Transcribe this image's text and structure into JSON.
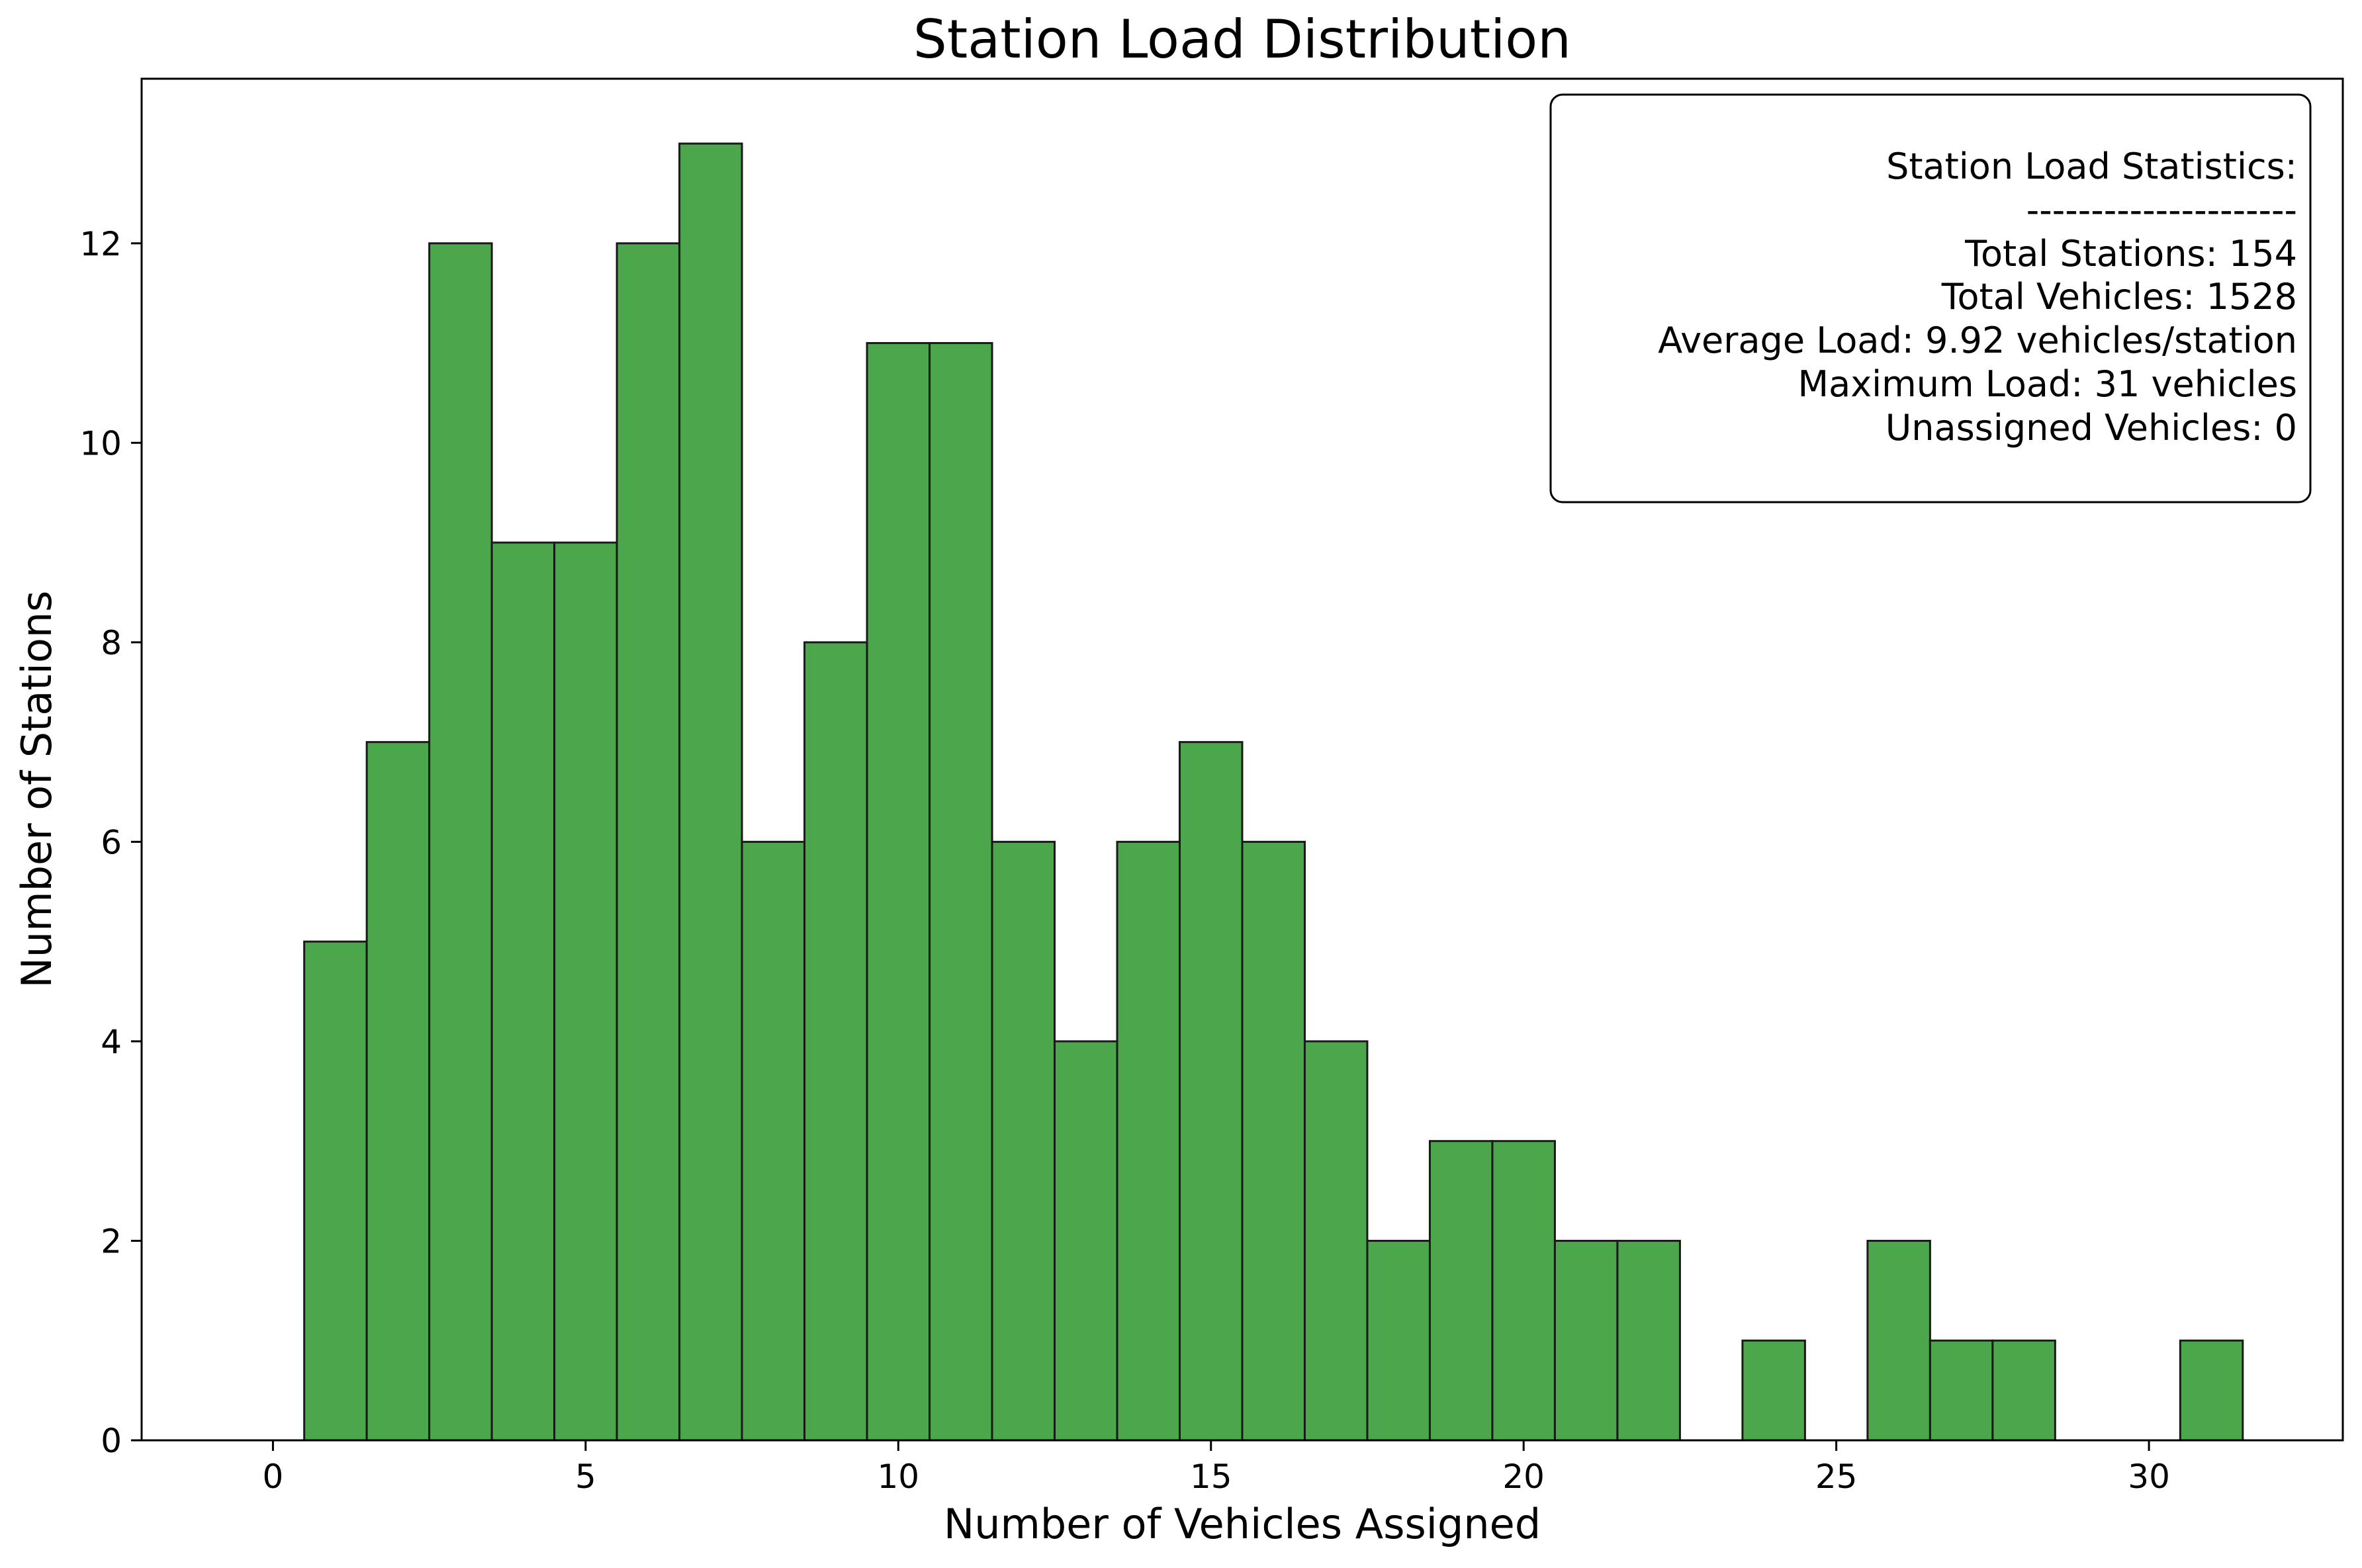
{
  "chart_data": {
    "type": "histogram",
    "title": "Station Load Distribution",
    "xlabel": "Number of Vehicles Assigned",
    "ylabel": "Number of Stations",
    "xlim": [
      -2.1,
      33.1
    ],
    "ylim": [
      0,
      13.65
    ],
    "xticks": [
      0,
      5,
      10,
      15,
      20,
      25,
      30
    ],
    "yticks": [
      0,
      2,
      4,
      6,
      8,
      10,
      12
    ],
    "bar_color": "#4ca64c",
    "edge_color": "#1a1a1a",
    "bins": [
      {
        "x": 0,
        "count": 0
      },
      {
        "x": 1,
        "count": 5
      },
      {
        "x": 2,
        "count": 7
      },
      {
        "x": 3,
        "count": 12
      },
      {
        "x": 4,
        "count": 9
      },
      {
        "x": 5,
        "count": 9
      },
      {
        "x": 6,
        "count": 12
      },
      {
        "x": 7,
        "count": 13
      },
      {
        "x": 8,
        "count": 6
      },
      {
        "x": 9,
        "count": 8
      },
      {
        "x": 10,
        "count": 11
      },
      {
        "x": 11,
        "count": 11
      },
      {
        "x": 12,
        "count": 6
      },
      {
        "x": 13,
        "count": 4
      },
      {
        "x": 14,
        "count": 6
      },
      {
        "x": 15,
        "count": 7
      },
      {
        "x": 16,
        "count": 6
      },
      {
        "x": 17,
        "count": 4
      },
      {
        "x": 18,
        "count": 2
      },
      {
        "x": 19,
        "count": 3
      },
      {
        "x": 20,
        "count": 3
      },
      {
        "x": 21,
        "count": 2
      },
      {
        "x": 22,
        "count": 2
      },
      {
        "x": 23,
        "count": 0
      },
      {
        "x": 24,
        "count": 1
      },
      {
        "x": 25,
        "count": 0
      },
      {
        "x": 26,
        "count": 2
      },
      {
        "x": 27,
        "count": 1
      },
      {
        "x": 28,
        "count": 1
      },
      {
        "x": 29,
        "count": 0
      },
      {
        "x": 30,
        "count": 0
      },
      {
        "x": 31,
        "count": 1
      }
    ],
    "stats_box": {
      "placement": "top-right",
      "lines": [
        "Station Load Statistics:",
        "---------------------",
        "Total Stations: 154",
        "Total Vehicles: 1528",
        "Average Load: 9.92 vehicles/station",
        "Maximum Load: 31 vehicles",
        "Unassigned Vehicles: 0"
      ]
    }
  }
}
